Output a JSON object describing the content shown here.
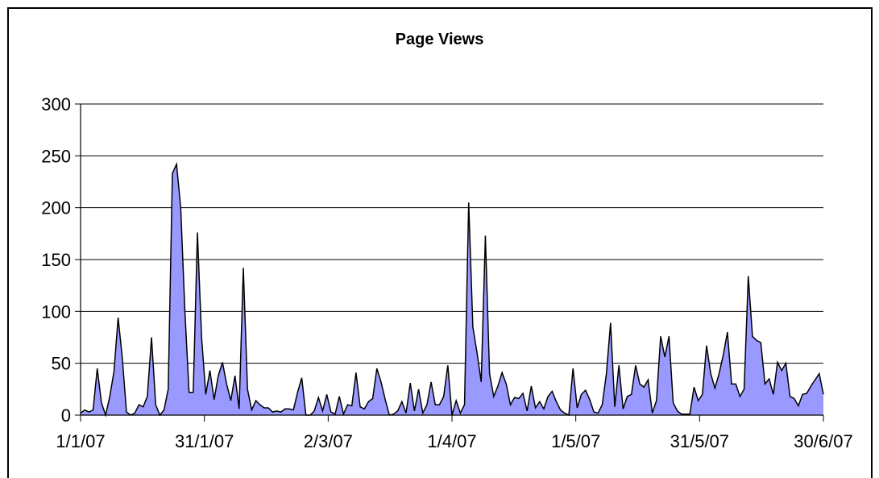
{
  "chart_data": {
    "type": "area",
    "title": "Page Views",
    "xlabel": "",
    "ylabel": "",
    "ylim": [
      0,
      300
    ],
    "yticks": [
      0,
      50,
      100,
      150,
      200,
      250,
      300
    ],
    "x_tick_labels": [
      "1/1/07",
      "31/1/07",
      "2/3/07",
      "1/4/07",
      "1/5/07",
      "31/5/07",
      "30/6/07"
    ],
    "x_start": "2007-01-01",
    "x_end": "2007-06-30",
    "grid": true,
    "legend": "none",
    "colors": {
      "fill": "#9999ff",
      "line": "#000000",
      "grid": "#000000"
    },
    "series": [
      {
        "values": [
          2,
          5,
          3,
          5,
          45,
          12,
          0,
          18,
          42,
          94,
          55,
          3,
          0,
          2,
          10,
          8,
          18,
          75,
          10,
          0,
          5,
          25,
          233,
          242,
          200,
          100,
          22,
          22,
          176,
          75,
          20,
          43,
          15,
          38,
          51,
          30,
          14,
          38,
          6,
          142,
          25,
          5,
          14,
          10,
          7,
          7,
          3,
          4,
          3,
          6,
          6,
          5,
          22,
          36,
          0,
          0,
          4,
          17,
          4,
          20,
          3,
          1,
          18,
          1,
          10,
          9,
          41,
          8,
          6,
          13,
          16,
          45,
          32,
          15,
          0,
          1,
          4,
          13,
          2,
          31,
          4,
          25,
          2,
          10,
          32,
          10,
          10,
          18,
          48,
          0,
          14,
          2,
          10,
          205,
          85,
          60,
          32,
          173,
          40,
          18,
          28,
          41,
          30,
          10,
          17,
          16,
          21,
          4,
          28,
          7,
          13,
          6,
          18,
          23,
          13,
          5,
          2,
          0,
          45,
          7,
          20,
          24,
          15,
          3,
          2,
          10,
          40,
          89,
          8,
          48,
          6,
          18,
          20,
          48,
          30,
          27,
          34,
          2,
          14,
          76,
          56,
          76,
          12,
          4,
          1,
          1,
          1,
          27,
          14,
          20,
          67,
          40,
          26,
          40,
          58,
          80,
          30,
          30,
          18,
          25,
          134,
          76,
          72,
          70,
          30,
          35,
          20,
          51,
          43,
          50,
          18,
          16,
          9,
          20,
          21,
          28,
          34,
          40,
          20
        ]
      }
    ]
  }
}
